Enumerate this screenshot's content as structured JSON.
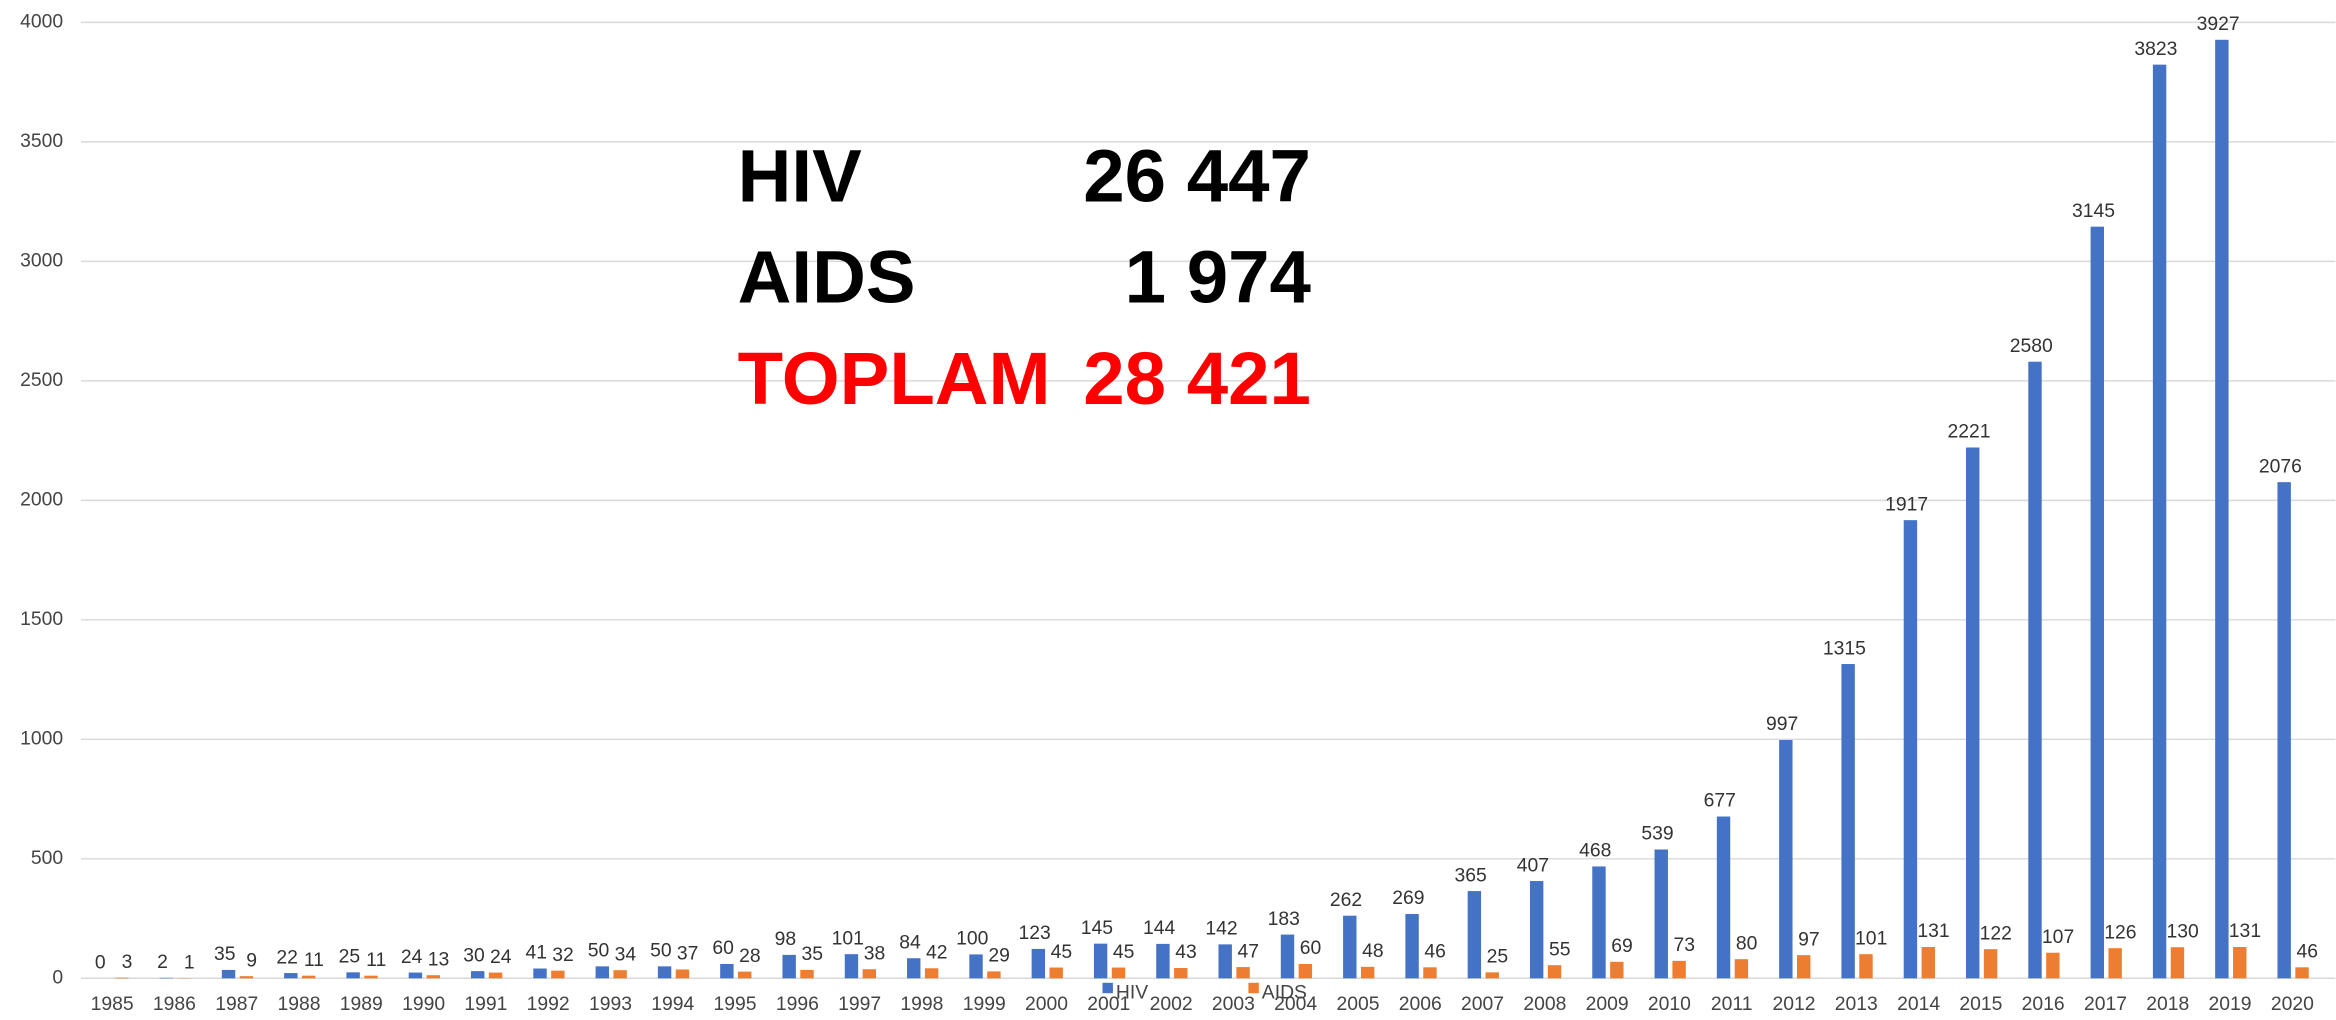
{
  "chart_data": {
    "type": "bar",
    "categories": [
      "1985",
      "1986",
      "1987",
      "1988",
      "1989",
      "1990",
      "1991",
      "1992",
      "1993",
      "1994",
      "1995",
      "1996",
      "1997",
      "1998",
      "1999",
      "2000",
      "2001",
      "2002",
      "2003",
      "2004",
      "2005",
      "2006",
      "2007",
      "2008",
      "2009",
      "2010",
      "2011",
      "2012",
      "2013",
      "2014",
      "2015",
      "2016",
      "2017",
      "2018",
      "2019",
      "2020"
    ],
    "series": [
      {
        "name": "HIV",
        "color": "#4472c4",
        "values": [
          0,
          2,
          35,
          22,
          25,
          24,
          30,
          41,
          50,
          50,
          60,
          98,
          101,
          84,
          100,
          123,
          145,
          144,
          142,
          183,
          262,
          269,
          365,
          407,
          468,
          539,
          677,
          997,
          1315,
          1917,
          2221,
          2580,
          3145,
          3823,
          3927,
          2076
        ]
      },
      {
        "name": "AIDS",
        "color": "#ed7d31",
        "values": [
          3,
          1,
          9,
          11,
          11,
          13,
          24,
          32,
          34,
          37,
          28,
          35,
          38,
          42,
          29,
          45,
          45,
          43,
          47,
          60,
          48,
          46,
          25,
          55,
          69,
          73,
          80,
          97,
          101,
          131,
          122,
          107,
          126,
          130,
          131,
          46
        ]
      }
    ],
    "ylim": [
      0,
      4000
    ],
    "yticks": [
      0,
      500,
      1000,
      1500,
      2000,
      2500,
      3000,
      3500,
      4000
    ],
    "grid": true,
    "summary": [
      {
        "label": "HIV",
        "value": "26 447"
      },
      {
        "label": "AIDS",
        "value": "1 974"
      },
      {
        "label": "TOPLAM",
        "value": "28 421"
      }
    ]
  }
}
